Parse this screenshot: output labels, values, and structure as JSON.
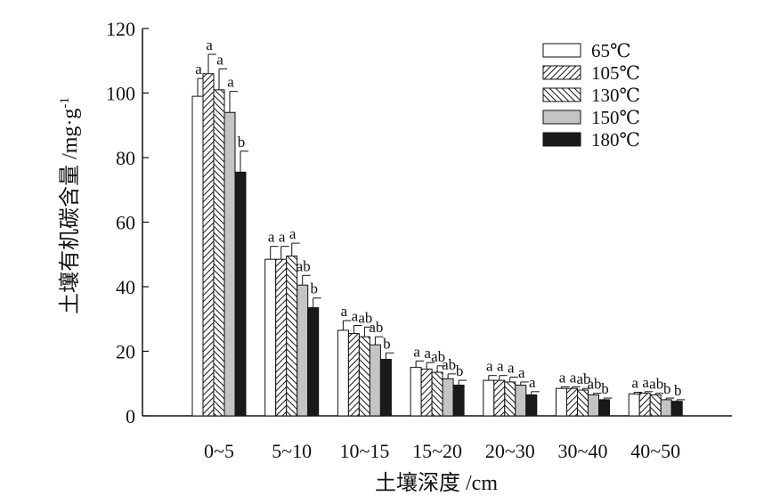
{
  "chart_data": {
    "type": "bar",
    "title": "",
    "xlabel": "土壤深度 /cm",
    "ylabel": "土壤有机碳含量 /mg·g",
    "ylabel_sup": "-1",
    "ylim": [
      0,
      120
    ],
    "yticks": [
      "0",
      "20",
      "40",
      "60",
      "80",
      "100",
      "120"
    ],
    "grid": false,
    "legend_position": "top-right",
    "categories": [
      "0~5",
      "5~10",
      "10~15",
      "15~20",
      "20~30",
      "30~40",
      "40~50"
    ],
    "series": [
      {
        "name": "65℃",
        "pattern": "white",
        "values": [
          99,
          48.5,
          26.5,
          15,
          11,
          8.5,
          6.8
        ],
        "errors": [
          5.5,
          4,
          3,
          2,
          1.5,
          0.5,
          0.5
        ],
        "letters": [
          "a",
          "a",
          "a",
          "a",
          "a",
          "a",
          "a"
        ]
      },
      {
        "name": "105℃",
        "pattern": "diag-right",
        "values": [
          106,
          48.5,
          25.5,
          14.5,
          11,
          8.5,
          7
        ],
        "errors": [
          6,
          4,
          2.5,
          2,
          1.5,
          0.5,
          0.5
        ],
        "letters": [
          "a",
          "a",
          "a",
          "a",
          "a",
          "a",
          "a"
        ]
      },
      {
        "name": "130℃",
        "pattern": "diag-left",
        "values": [
          101,
          49.5,
          24.5,
          13.5,
          10.5,
          8,
          6.5
        ],
        "errors": [
          6.5,
          4,
          3,
          2,
          1.5,
          0.5,
          0.5
        ],
        "letters": [
          "a",
          "a",
          "ab",
          "ab",
          "a",
          "ab",
          "ab"
        ]
      },
      {
        "name": "150℃",
        "pattern": "gray",
        "values": [
          94,
          40.5,
          22,
          11.5,
          9.5,
          6.5,
          5
        ],
        "errors": [
          6.5,
          3,
          2.5,
          1.5,
          1,
          0.5,
          0.5
        ],
        "letters": [
          "a",
          "ab",
          "ab",
          "ab",
          "a",
          "ab",
          "b"
        ]
      },
      {
        "name": "180℃",
        "pattern": "black",
        "values": [
          75.5,
          33.5,
          17.5,
          9.5,
          6.5,
          5,
          4.5
        ],
        "errors": [
          6.5,
          3,
          2,
          1.5,
          1,
          0.5,
          0.5
        ],
        "letters": [
          "b",
          "b",
          "b",
          "b",
          "a",
          "b",
          "b"
        ]
      }
    ]
  }
}
